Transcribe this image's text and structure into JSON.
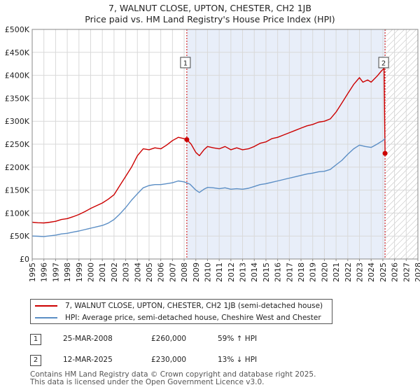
{
  "chart_data": {
    "type": "line",
    "title": "7, WALNUT CLOSE, UPTON, CHESTER, CH2 1JB",
    "subtitle": "Price paid vs. HM Land Registry's House Price Index (HPI)",
    "xlabel": "",
    "ylabel": "",
    "xlim": [
      1995,
      2028
    ],
    "ylim": [
      0,
      500000
    ],
    "x_ticks": [
      "1995",
      "1996",
      "1997",
      "1998",
      "1999",
      "2000",
      "2001",
      "2002",
      "2003",
      "2004",
      "2005",
      "2006",
      "2007",
      "2008",
      "2009",
      "2010",
      "2011",
      "2012",
      "2013",
      "2014",
      "2015",
      "2016",
      "2017",
      "2018",
      "2019",
      "2020",
      "2021",
      "2022",
      "2023",
      "2024",
      "2025",
      "2026",
      "2027",
      "2028"
    ],
    "y_ticks": [
      {
        "value": 0,
        "label": "£0"
      },
      {
        "value": 50000,
        "label": "£50K"
      },
      {
        "value": 100000,
        "label": "£100K"
      },
      {
        "value": 150000,
        "label": "£150K"
      },
      {
        "value": 200000,
        "label": "£200K"
      },
      {
        "value": 250000,
        "label": "£250K"
      },
      {
        "value": 300000,
        "label": "£300K"
      },
      {
        "value": 350000,
        "label": "£350K"
      },
      {
        "value": 400000,
        "label": "£400K"
      },
      {
        "value": 450000,
        "label": "£450K"
      },
      {
        "value": 500000,
        "label": "£500K"
      }
    ],
    "grid": true,
    "shaded_period": {
      "from": 2008.23,
      "to": 2025.19
    },
    "future_hatch_from": 2025.19,
    "series": [
      {
        "name": "7, WALNUT CLOSE, UPTON, CHESTER, CH2 1JB (semi-detached house)",
        "color": "#cc0000",
        "points": [
          [
            1995.0,
            80000
          ],
          [
            1995.5,
            79000
          ],
          [
            1996.0,
            78500
          ],
          [
            1996.5,
            80000
          ],
          [
            1997.0,
            82000
          ],
          [
            1997.5,
            86000
          ],
          [
            1998.0,
            88000
          ],
          [
            1998.5,
            92000
          ],
          [
            1999.0,
            97000
          ],
          [
            1999.5,
            103000
          ],
          [
            2000.0,
            110000
          ],
          [
            2000.5,
            116000
          ],
          [
            2001.0,
            122000
          ],
          [
            2001.5,
            130000
          ],
          [
            2002.0,
            140000
          ],
          [
            2002.5,
            160000
          ],
          [
            2003.0,
            180000
          ],
          [
            2003.5,
            200000
          ],
          [
            2004.0,
            225000
          ],
          [
            2004.5,
            240000
          ],
          [
            2005.0,
            238000
          ],
          [
            2005.5,
            242000
          ],
          [
            2006.0,
            240000
          ],
          [
            2006.5,
            248000
          ],
          [
            2007.0,
            258000
          ],
          [
            2007.5,
            265000
          ],
          [
            2008.0,
            262000
          ],
          [
            2008.23,
            260000
          ],
          [
            2008.6,
            250000
          ],
          [
            2009.0,
            232000
          ],
          [
            2009.3,
            225000
          ],
          [
            2009.7,
            238000
          ],
          [
            2010.0,
            245000
          ],
          [
            2010.5,
            242000
          ],
          [
            2011.0,
            240000
          ],
          [
            2011.5,
            245000
          ],
          [
            2012.0,
            238000
          ],
          [
            2012.5,
            242000
          ],
          [
            2013.0,
            238000
          ],
          [
            2013.5,
            240000
          ],
          [
            2014.0,
            245000
          ],
          [
            2014.5,
            252000
          ],
          [
            2015.0,
            255000
          ],
          [
            2015.5,
            262000
          ],
          [
            2016.0,
            265000
          ],
          [
            2016.5,
            270000
          ],
          [
            2017.0,
            275000
          ],
          [
            2017.5,
            280000
          ],
          [
            2018.0,
            285000
          ],
          [
            2018.5,
            290000
          ],
          [
            2019.0,
            293000
          ],
          [
            2019.5,
            298000
          ],
          [
            2020.0,
            300000
          ],
          [
            2020.5,
            305000
          ],
          [
            2021.0,
            320000
          ],
          [
            2021.5,
            340000
          ],
          [
            2022.0,
            360000
          ],
          [
            2022.5,
            380000
          ],
          [
            2023.0,
            395000
          ],
          [
            2023.3,
            385000
          ],
          [
            2023.7,
            390000
          ],
          [
            2024.0,
            385000
          ],
          [
            2024.5,
            398000
          ],
          [
            2024.9,
            410000
          ],
          [
            2025.1,
            415000
          ],
          [
            2025.19,
            230000
          ]
        ]
      },
      {
        "name": "HPI: Average price, semi-detached house, Cheshire West and Chester",
        "color": "#5b8ec5",
        "points": [
          [
            1995.0,
            50000
          ],
          [
            1995.5,
            49500
          ],
          [
            1996.0,
            49000
          ],
          [
            1996.5,
            50500
          ],
          [
            1997.0,
            52000
          ],
          [
            1997.5,
            54500
          ],
          [
            1998.0,
            56000
          ],
          [
            1998.5,
            58500
          ],
          [
            1999.0,
            61000
          ],
          [
            1999.5,
            64000
          ],
          [
            2000.0,
            67000
          ],
          [
            2000.5,
            70000
          ],
          [
            2001.0,
            73000
          ],
          [
            2001.5,
            78000
          ],
          [
            2002.0,
            86000
          ],
          [
            2002.5,
            98000
          ],
          [
            2003.0,
            112000
          ],
          [
            2003.5,
            128000
          ],
          [
            2004.0,
            142000
          ],
          [
            2004.5,
            155000
          ],
          [
            2005.0,
            160000
          ],
          [
            2005.5,
            162000
          ],
          [
            2006.0,
            162000
          ],
          [
            2006.5,
            164000
          ],
          [
            2007.0,
            166000
          ],
          [
            2007.5,
            170000
          ],
          [
            2008.0,
            168000
          ],
          [
            2008.5,
            163000
          ],
          [
            2009.0,
            150000
          ],
          [
            2009.3,
            145000
          ],
          [
            2009.7,
            152000
          ],
          [
            2010.0,
            156000
          ],
          [
            2010.5,
            155000
          ],
          [
            2011.0,
            153000
          ],
          [
            2011.5,
            155000
          ],
          [
            2012.0,
            152000
          ],
          [
            2012.5,
            153000
          ],
          [
            2013.0,
            152000
          ],
          [
            2013.5,
            154000
          ],
          [
            2014.0,
            158000
          ],
          [
            2014.5,
            162000
          ],
          [
            2015.0,
            164000
          ],
          [
            2015.5,
            167000
          ],
          [
            2016.0,
            170000
          ],
          [
            2016.5,
            173000
          ],
          [
            2017.0,
            176000
          ],
          [
            2017.5,
            179000
          ],
          [
            2018.0,
            182000
          ],
          [
            2018.5,
            185000
          ],
          [
            2019.0,
            187000
          ],
          [
            2019.5,
            190000
          ],
          [
            2020.0,
            191000
          ],
          [
            2020.5,
            195000
          ],
          [
            2021.0,
            205000
          ],
          [
            2021.5,
            215000
          ],
          [
            2022.0,
            228000
          ],
          [
            2022.5,
            240000
          ],
          [
            2023.0,
            248000
          ],
          [
            2023.5,
            245000
          ],
          [
            2024.0,
            243000
          ],
          [
            2024.5,
            250000
          ],
          [
            2025.0,
            258000
          ],
          [
            2025.19,
            262000
          ]
        ]
      }
    ],
    "sales": [
      {
        "label": "1",
        "x": 2008.23,
        "y": 260000,
        "date": "25-MAR-2008",
        "price": "£260,000",
        "hpi": "59% ↑ HPI"
      },
      {
        "label": "2",
        "x": 2025.19,
        "y": 230000,
        "date": "12-MAR-2025",
        "price": "£230,000",
        "hpi": "13% ↓ HPI"
      }
    ],
    "marker_label_y": 427000
  },
  "legend": {
    "items": [
      {
        "label": "7, WALNUT CLOSE, UPTON, CHESTER, CH2 1JB (semi-detached house)",
        "color": "#cc0000"
      },
      {
        "label": "HPI: Average price, semi-detached house, Cheshire West and Chester",
        "color": "#5b8ec5"
      }
    ]
  },
  "footer": {
    "line1": "Contains HM Land Registry data © Crown copyright and database right 2025.",
    "line2": "This data is licensed under the Open Government Licence v3.0."
  }
}
